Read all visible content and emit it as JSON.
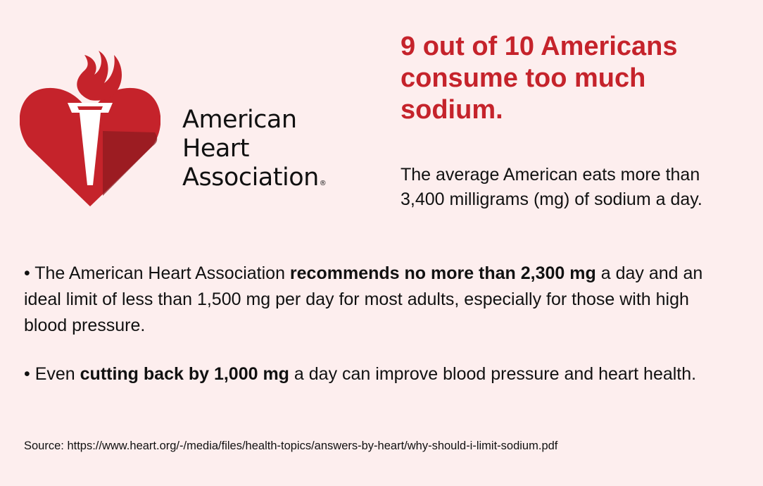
{
  "logo": {
    "line1": "American",
    "line2": "Heart",
    "line3": "Association",
    "registered": "®",
    "colors": {
      "red": "#c5232b",
      "dark_red": "#8e1b20",
      "white": "#ffffff"
    },
    "icon": "heart-torch-icon"
  },
  "headline": "9 out of 10 Americans consume too much sodium.",
  "lead": "The average American eats more than 3,400 milligrams (mg) of sodium a day.",
  "bullets": [
    {
      "prefix": "• The American Heart Association ",
      "bold": "recommends no more than 2,300 mg",
      "suffix": " a day and an ideal limit of less than 1,500 mg per day for most adults, especially for those with high blood pressure."
    },
    {
      "prefix": "• Even ",
      "bold": "cutting back by 1,000 mg",
      "suffix": " a day can improve blood pressure and heart health."
    }
  ],
  "source": "Source: https://www.heart.org/-/media/files/health-topics/answers-by-heart/why-should-i-limit-sodium.pdf"
}
